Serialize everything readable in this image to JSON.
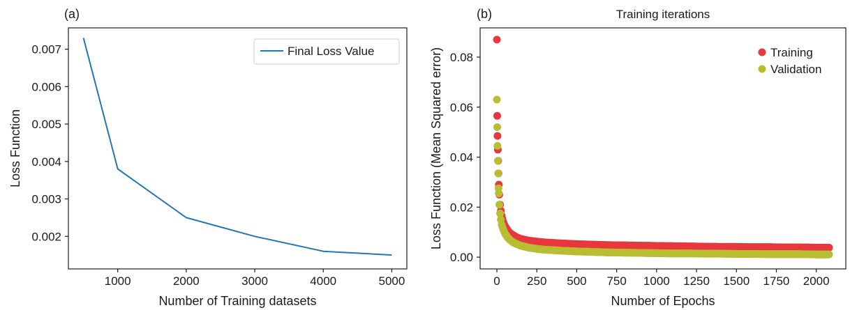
{
  "colors": {
    "line": "#1f77b4",
    "training": "#e8383d",
    "validation": "#b8bd32",
    "axis": "#1a1a1a",
    "legend_border": "#cccccc"
  },
  "chart_data": [
    {
      "panel_label": "(a)",
      "type": "line",
      "title": "",
      "xlabel": "Number of Training datasets",
      "ylabel": "Loss Function",
      "xlim": [
        280,
        5220
      ],
      "ylim": [
        0.00113,
        0.00757
      ],
      "xticks": [
        1000,
        2000,
        3000,
        4000,
        5000
      ],
      "yticks": [
        0.002,
        0.003,
        0.004,
        0.005,
        0.006,
        0.007
      ],
      "xtick_labels": [
        "1000",
        "2000",
        "3000",
        "4000",
        "5000"
      ],
      "ytick_labels": [
        "0.002",
        "0.003",
        "0.004",
        "0.005",
        "0.006",
        "0.007"
      ],
      "legend": {
        "position": "top-right"
      },
      "series": [
        {
          "name": "Final Loss Value",
          "x": [
            500,
            1000,
            2000,
            3000,
            4000,
            5000
          ],
          "y": [
            0.0073,
            0.0038,
            0.0025,
            0.002,
            0.0016,
            0.0015
          ]
        }
      ],
      "grid": false
    },
    {
      "panel_label": "(b)",
      "type": "scatter",
      "title": "Training iterations",
      "xlabel": "Number of Epochs",
      "ylabel": "Loss Function (Mean Squared error)",
      "xlim": [
        -105,
        2185
      ],
      "ylim": [
        -0.0047,
        0.0917
      ],
      "xticks": [
        0,
        250,
        500,
        750,
        1000,
        1250,
        1500,
        1750,
        2000
      ],
      "yticks": [
        0.0,
        0.02,
        0.04,
        0.06,
        0.08
      ],
      "xtick_labels": [
        "0",
        "250",
        "500",
        "750",
        "1000",
        "1250",
        "1500",
        "1750",
        "2000"
      ],
      "ytick_labels": [
        "0.00",
        "0.02",
        "0.04",
        "0.06",
        "0.08"
      ],
      "legend": {
        "position": "top-right"
      },
      "series": [
        {
          "name": "Training",
          "description_points": "loss per epoch, sampled",
          "x": [
            0,
            2,
            4,
            6,
            8,
            10,
            12,
            15,
            20,
            25,
            30,
            40,
            50,
            60,
            70,
            80,
            100,
            125,
            150,
            200,
            250,
            300,
            400,
            500,
            600,
            700,
            800,
            900,
            1000,
            1100,
            1200,
            1300,
            1400,
            1500,
            1600,
            1700,
            1800,
            1900,
            2000,
            2080
          ],
          "y": [
            0.087,
            0.0565,
            0.0485,
            0.043,
            0.0385,
            0.0335,
            0.029,
            0.025,
            0.021,
            0.0185,
            0.0165,
            0.014,
            0.0125,
            0.0115,
            0.0105,
            0.0098,
            0.0088,
            0.0079,
            0.0073,
            0.0066,
            0.0062,
            0.0059,
            0.0055,
            0.0052,
            0.005,
            0.0048,
            0.0047,
            0.0046,
            0.0045,
            0.0044,
            0.0043,
            0.0042,
            0.0041,
            0.0041,
            0.004,
            0.004,
            0.0039,
            0.0039,
            0.0038,
            0.0038
          ]
        },
        {
          "name": "Validation",
          "x": [
            0,
            2,
            4,
            6,
            8,
            10,
            12,
            15,
            20,
            25,
            30,
            40,
            50,
            60,
            70,
            80,
            100,
            125,
            150,
            200,
            250,
            300,
            400,
            500,
            600,
            700,
            800,
            900,
            1000,
            1100,
            1200,
            1300,
            1400,
            1500,
            1600,
            1700,
            1800,
            1900,
            2000,
            2080
          ],
          "y": [
            0.063,
            0.052,
            0.0445,
            0.0385,
            0.0335,
            0.0275,
            0.0255,
            0.021,
            0.0175,
            0.015,
            0.013,
            0.011,
            0.0095,
            0.0085,
            0.0077,
            0.007,
            0.006,
            0.0052,
            0.0046,
            0.0038,
            0.0033,
            0.003,
            0.0026,
            0.0023,
            0.0021,
            0.0019,
            0.0018,
            0.0017,
            0.0016,
            0.0015,
            0.0015,
            0.0014,
            0.0014,
            0.0013,
            0.0013,
            0.0012,
            0.0012,
            0.0012,
            0.0011,
            0.0011
          ]
        }
      ],
      "grid": false
    }
  ]
}
